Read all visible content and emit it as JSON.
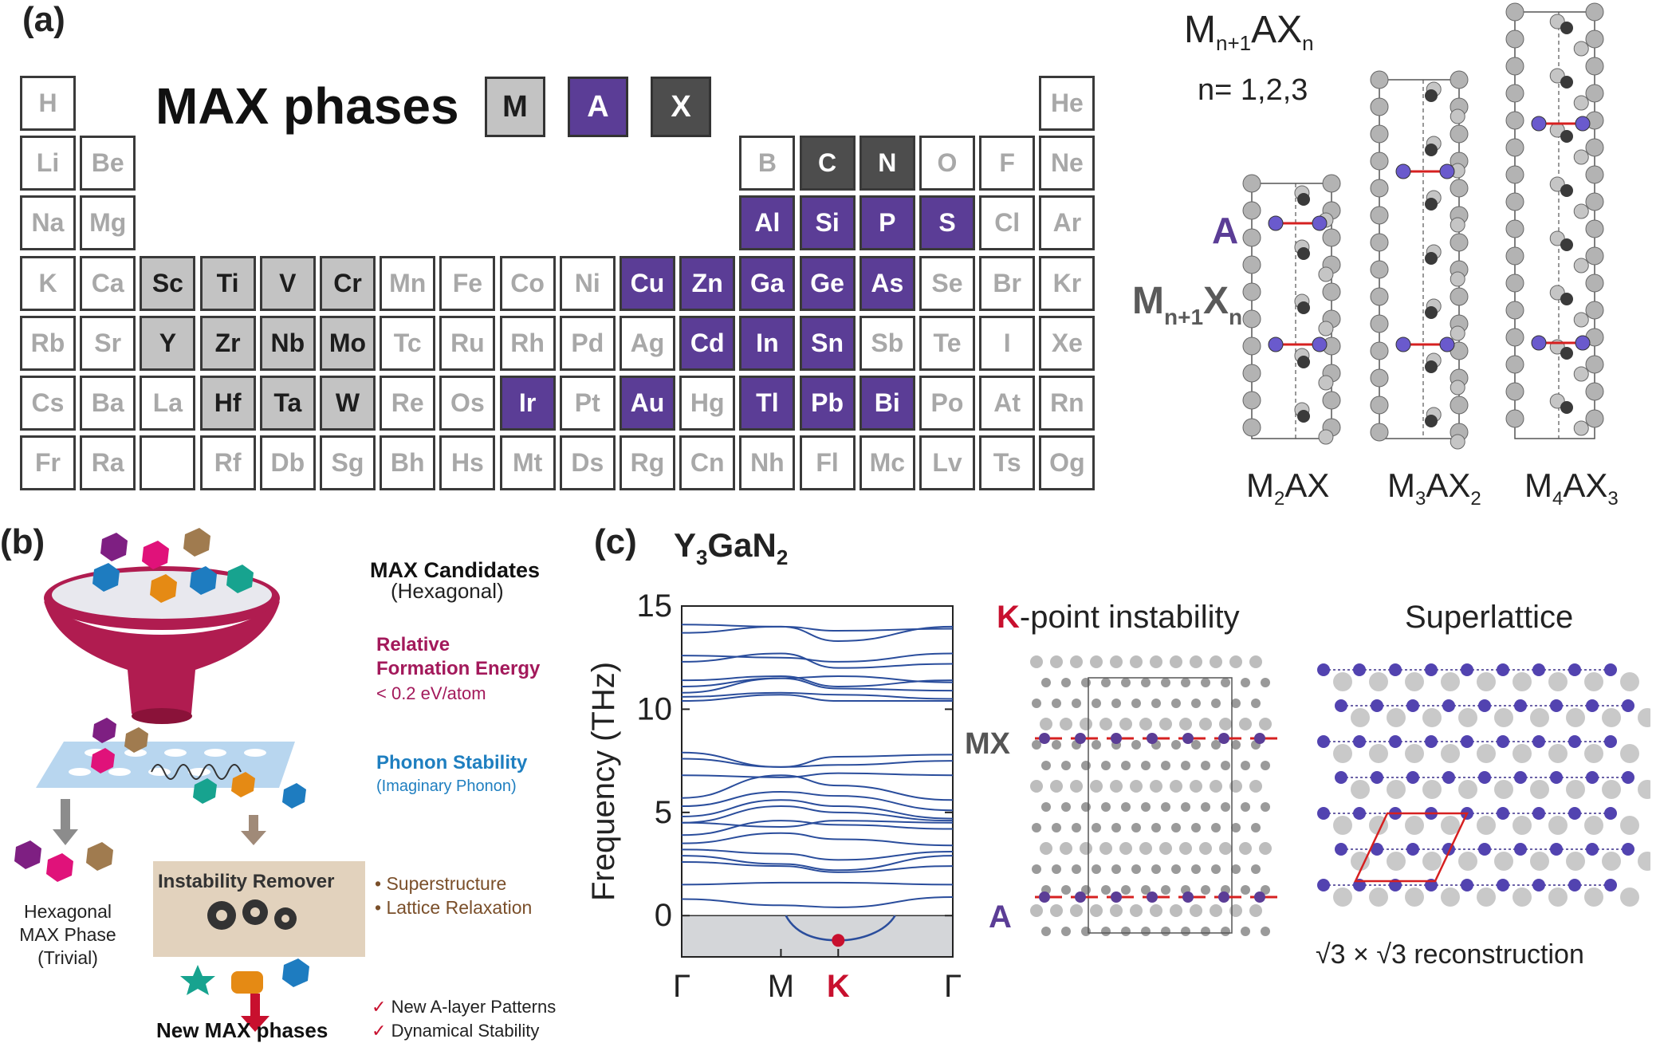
{
  "panel_a": {
    "label": "(a)",
    "title": "MAX phases",
    "legend": {
      "M": "M",
      "A": "A",
      "X": "X"
    },
    "colors": {
      "M": "#c3c3c3",
      "A": "#5b3d96",
      "X": "#4d4d4d",
      "other": "#ffffff"
    },
    "elements": [
      {
        "sym": "H",
        "row": 0,
        "col": 0,
        "cat": "other"
      },
      {
        "sym": "He",
        "row": 0,
        "col": 17,
        "cat": "other"
      },
      {
        "sym": "Li",
        "row": 1,
        "col": 0,
        "cat": "other"
      },
      {
        "sym": "Be",
        "row": 1,
        "col": 1,
        "cat": "other"
      },
      {
        "sym": "B",
        "row": 1,
        "col": 12,
        "cat": "other"
      },
      {
        "sym": "C",
        "row": 1,
        "col": 13,
        "cat": "X"
      },
      {
        "sym": "N",
        "row": 1,
        "col": 14,
        "cat": "X"
      },
      {
        "sym": "O",
        "row": 1,
        "col": 15,
        "cat": "other"
      },
      {
        "sym": "F",
        "row": 1,
        "col": 16,
        "cat": "other"
      },
      {
        "sym": "Ne",
        "row": 1,
        "col": 17,
        "cat": "other"
      },
      {
        "sym": "Na",
        "row": 2,
        "col": 0,
        "cat": "other"
      },
      {
        "sym": "Mg",
        "row": 2,
        "col": 1,
        "cat": "other"
      },
      {
        "sym": "Al",
        "row": 2,
        "col": 12,
        "cat": "A"
      },
      {
        "sym": "Si",
        "row": 2,
        "col": 13,
        "cat": "A"
      },
      {
        "sym": "P",
        "row": 2,
        "col": 14,
        "cat": "A"
      },
      {
        "sym": "S",
        "row": 2,
        "col": 15,
        "cat": "A"
      },
      {
        "sym": "Cl",
        "row": 2,
        "col": 16,
        "cat": "other"
      },
      {
        "sym": "Ar",
        "row": 2,
        "col": 17,
        "cat": "other"
      },
      {
        "sym": "K",
        "row": 3,
        "col": 0,
        "cat": "other"
      },
      {
        "sym": "Ca",
        "row": 3,
        "col": 1,
        "cat": "other"
      },
      {
        "sym": "Sc",
        "row": 3,
        "col": 2,
        "cat": "M"
      },
      {
        "sym": "Ti",
        "row": 3,
        "col": 3,
        "cat": "M"
      },
      {
        "sym": "V",
        "row": 3,
        "col": 4,
        "cat": "M"
      },
      {
        "sym": "Cr",
        "row": 3,
        "col": 5,
        "cat": "M"
      },
      {
        "sym": "Mn",
        "row": 3,
        "col": 6,
        "cat": "other"
      },
      {
        "sym": "Fe",
        "row": 3,
        "col": 7,
        "cat": "other"
      },
      {
        "sym": "Co",
        "row": 3,
        "col": 8,
        "cat": "other"
      },
      {
        "sym": "Ni",
        "row": 3,
        "col": 9,
        "cat": "other"
      },
      {
        "sym": "Cu",
        "row": 3,
        "col": 10,
        "cat": "A"
      },
      {
        "sym": "Zn",
        "row": 3,
        "col": 11,
        "cat": "A"
      },
      {
        "sym": "Ga",
        "row": 3,
        "col": 12,
        "cat": "A"
      },
      {
        "sym": "Ge",
        "row": 3,
        "col": 13,
        "cat": "A"
      },
      {
        "sym": "As",
        "row": 3,
        "col": 14,
        "cat": "A"
      },
      {
        "sym": "Se",
        "row": 3,
        "col": 15,
        "cat": "other"
      },
      {
        "sym": "Br",
        "row": 3,
        "col": 16,
        "cat": "other"
      },
      {
        "sym": "Kr",
        "row": 3,
        "col": 17,
        "cat": "other"
      },
      {
        "sym": "Rb",
        "row": 4,
        "col": 0,
        "cat": "other"
      },
      {
        "sym": "Sr",
        "row": 4,
        "col": 1,
        "cat": "other"
      },
      {
        "sym": "Y",
        "row": 4,
        "col": 2,
        "cat": "M"
      },
      {
        "sym": "Zr",
        "row": 4,
        "col": 3,
        "cat": "M"
      },
      {
        "sym": "Nb",
        "row": 4,
        "col": 4,
        "cat": "M"
      },
      {
        "sym": "Mo",
        "row": 4,
        "col": 5,
        "cat": "M"
      },
      {
        "sym": "Tc",
        "row": 4,
        "col": 6,
        "cat": "other"
      },
      {
        "sym": "Ru",
        "row": 4,
        "col": 7,
        "cat": "other"
      },
      {
        "sym": "Rh",
        "row": 4,
        "col": 8,
        "cat": "other"
      },
      {
        "sym": "Pd",
        "row": 4,
        "col": 9,
        "cat": "other"
      },
      {
        "sym": "Ag",
        "row": 4,
        "col": 10,
        "cat": "other"
      },
      {
        "sym": "Cd",
        "row": 4,
        "col": 11,
        "cat": "A"
      },
      {
        "sym": "In",
        "row": 4,
        "col": 12,
        "cat": "A"
      },
      {
        "sym": "Sn",
        "row": 4,
        "col": 13,
        "cat": "A"
      },
      {
        "sym": "Sb",
        "row": 4,
        "col": 14,
        "cat": "other"
      },
      {
        "sym": "Te",
        "row": 4,
        "col": 15,
        "cat": "other"
      },
      {
        "sym": "I",
        "row": 4,
        "col": 16,
        "cat": "other"
      },
      {
        "sym": "Xe",
        "row": 4,
        "col": 17,
        "cat": "other"
      },
      {
        "sym": "Cs",
        "row": 5,
        "col": 0,
        "cat": "other"
      },
      {
        "sym": "Ba",
        "row": 5,
        "col": 1,
        "cat": "other"
      },
      {
        "sym": "La",
        "row": 5,
        "col": 2,
        "cat": "other"
      },
      {
        "sym": "Hf",
        "row": 5,
        "col": 3,
        "cat": "M"
      },
      {
        "sym": "Ta",
        "row": 5,
        "col": 4,
        "cat": "M"
      },
      {
        "sym": "W",
        "row": 5,
        "col": 5,
        "cat": "M"
      },
      {
        "sym": "Re",
        "row": 5,
        "col": 6,
        "cat": "other"
      },
      {
        "sym": "Os",
        "row": 5,
        "col": 7,
        "cat": "other"
      },
      {
        "sym": "Ir",
        "row": 5,
        "col": 8,
        "cat": "A"
      },
      {
        "sym": "Pt",
        "row": 5,
        "col": 9,
        "cat": "other"
      },
      {
        "sym": "Au",
        "row": 5,
        "col": 10,
        "cat": "A"
      },
      {
        "sym": "Hg",
        "row": 5,
        "col": 11,
        "cat": "other"
      },
      {
        "sym": "Tl",
        "row": 5,
        "col": 12,
        "cat": "A"
      },
      {
        "sym": "Pb",
        "row": 5,
        "col": 13,
        "cat": "A"
      },
      {
        "sym": "Bi",
        "row": 5,
        "col": 14,
        "cat": "A"
      },
      {
        "sym": "Po",
        "row": 5,
        "col": 15,
        "cat": "other"
      },
      {
        "sym": "At",
        "row": 5,
        "col": 16,
        "cat": "other"
      },
      {
        "sym": "Rn",
        "row": 5,
        "col": 17,
        "cat": "other"
      },
      {
        "sym": "Fr",
        "row": 6,
        "col": 0,
        "cat": "other"
      },
      {
        "sym": "Ra",
        "row": 6,
        "col": 1,
        "cat": "other"
      },
      {
        "sym": "",
        "row": 6,
        "col": 2,
        "cat": "other"
      },
      {
        "sym": "Rf",
        "row": 6,
        "col": 3,
        "cat": "other"
      },
      {
        "sym": "Db",
        "row": 6,
        "col": 4,
        "cat": "other"
      },
      {
        "sym": "Sg",
        "row": 6,
        "col": 5,
        "cat": "other"
      },
      {
        "sym": "Bh",
        "row": 6,
        "col": 6,
        "cat": "other"
      },
      {
        "sym": "Hs",
        "row": 6,
        "col": 7,
        "cat": "other"
      },
      {
        "sym": "Mt",
        "row": 6,
        "col": 8,
        "cat": "other"
      },
      {
        "sym": "Ds",
        "row": 6,
        "col": 9,
        "cat": "other"
      },
      {
        "sym": "Rg",
        "row": 6,
        "col": 10,
        "cat": "other"
      },
      {
        "sym": "Cn",
        "row": 6,
        "col": 11,
        "cat": "other"
      },
      {
        "sym": "Nh",
        "row": 6,
        "col": 12,
        "cat": "other"
      },
      {
        "sym": "Fl",
        "row": 6,
        "col": 13,
        "cat": "other"
      },
      {
        "sym": "Mc",
        "row": 6,
        "col": 14,
        "cat": "other"
      },
      {
        "sym": "Lv",
        "row": 6,
        "col": 15,
        "cat": "other"
      },
      {
        "sym": "Ts",
        "row": 6,
        "col": 16,
        "cat": "other"
      },
      {
        "sym": "Og",
        "row": 6,
        "col": 17,
        "cat": "other"
      }
    ],
    "formula": {
      "M": "M",
      "M_sub": "n+1",
      "AX": "AX",
      "X_sub": "n"
    },
    "n_values": "n= 1,2,3",
    "layer_A": "A",
    "layer_MX": {
      "M": "M",
      "sub1": "n+1",
      "X": "X",
      "sub2": "n"
    },
    "structures": [
      {
        "base": "M",
        "s1": "2",
        "mid": "AX",
        "s2": ""
      },
      {
        "base": "M",
        "s1": "3",
        "mid": "AX",
        "s2": "2"
      },
      {
        "base": "M",
        "s1": "4",
        "mid": "AX",
        "s2": "3"
      }
    ]
  },
  "panel_b": {
    "label": "(b)",
    "candidates_title": "MAX Candidates",
    "candidates_sub": "(Hexagonal)",
    "formation_title1": "Relative",
    "formation_title2": "Formation Energy",
    "formation_sub": "< 0.2 eV/atom",
    "phonon_title": "Phonon Stability",
    "phonon_sub": "(Imaginary Phonon)",
    "remover": "Instability Remover",
    "remover_items": [
      "• Superstructure",
      "• Lattice Relaxation"
    ],
    "trivial": [
      "Hexagonal",
      "MAX Phase",
      "(Trivial)"
    ],
    "new_max": "New MAX phases",
    "checks": [
      "New A-layer Patterns",
      "Dynamical Stability"
    ],
    "check_mark": "✓",
    "colors": {
      "funnel": "#b01c50",
      "formation": "#a3195b",
      "phonon": "#1f7fc0",
      "remover_bg": "#e2d2bd",
      "remover_text": "#7a4f2a",
      "arrow": "#c8102e"
    }
  },
  "panel_c": {
    "label": "(c)",
    "compound": {
      "base1": "Y",
      "s1": "3",
      "base2": "GaN",
      "s2": "2"
    },
    "kpoint_title_K": "K",
    "kpoint_title_rest": "-point instability",
    "superlattice_title": "Superlattice",
    "mx_label": "MX",
    "a_label": "A",
    "reconstruction": "√3 × √3  reconstruction"
  },
  "chart_data": {
    "type": "line",
    "title": "",
    "ylabel": "Frequency (THz)",
    "xlabel": "",
    "ylim": [
      -2,
      15
    ],
    "yticks": [
      "15",
      "10",
      "5",
      "0"
    ],
    "ytick_values": [
      15,
      10,
      5,
      0
    ],
    "xticks": [
      "Γ",
      "M",
      "K",
      "Γ"
    ],
    "xtick_positions": [
      0,
      1,
      1.5773,
      2.732
    ],
    "highlight_tick": "K",
    "imaginary_min": {
      "x": 1.5773,
      "y": -1.2
    },
    "colors": {
      "bands": "#2a4d9c",
      "negative_region": "#d4d6d9",
      "highlight": "#c8102e"
    },
    "bands": [
      [
        14.1,
        14.0,
        13.3,
        14.0
      ],
      [
        13.7,
        14.0,
        13.8,
        13.9
      ],
      [
        12.6,
        12.5,
        12.3,
        12.7
      ],
      [
        12.3,
        12.7,
        12.0,
        12.2
      ],
      [
        11.4,
        11.6,
        11.1,
        11.4
      ],
      [
        11.1,
        11.5,
        11.6,
        11.3
      ],
      [
        10.8,
        11.5,
        11.0,
        10.9
      ],
      [
        10.6,
        10.8,
        10.7,
        10.5
      ],
      [
        10.4,
        10.7,
        10.4,
        10.4
      ],
      [
        7.9,
        7.2,
        7.7,
        7.8
      ],
      [
        7.6,
        7.2,
        7.3,
        7.5
      ],
      [
        6.8,
        6.7,
        6.9,
        6.8
      ],
      [
        5.7,
        6.8,
        6.3,
        5.6
      ],
      [
        5.3,
        6.0,
        5.8,
        5.1
      ],
      [
        4.8,
        5.6,
        5.3,
        4.7
      ],
      [
        4.5,
        5.3,
        5.0,
        4.6
      ],
      [
        4.5,
        4.3,
        4.6,
        4.5
      ],
      [
        3.9,
        4.6,
        4.4,
        4.2
      ],
      [
        3.5,
        4.0,
        3.7,
        3.4
      ],
      [
        3.2,
        3.0,
        2.7,
        3.1
      ],
      [
        2.9,
        2.5,
        2.2,
        2.9
      ],
      [
        2.6,
        2.4,
        2.1,
        2.4
      ],
      [
        1.5,
        1.6,
        1.6,
        1.5
      ],
      [
        0.8,
        0.5,
        0.4,
        0.9
      ]
    ]
  }
}
